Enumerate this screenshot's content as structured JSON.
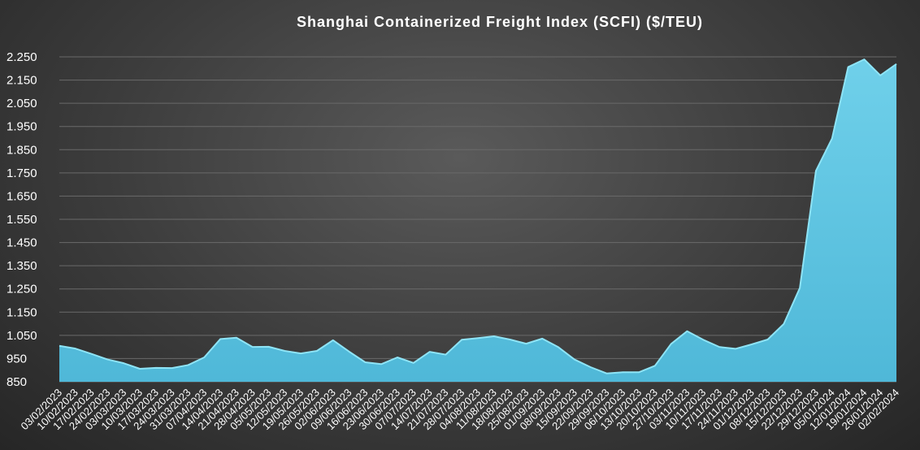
{
  "chart_data": {
    "type": "area",
    "title": "Shanghai Containerized Freight Index (SCFI) ($/TEU)",
    "xlabel": "",
    "ylabel": "",
    "ylim": [
      850,
      2250
    ],
    "y_ticks": [
      "2.250",
      "2.150",
      "2.050",
      "1.950",
      "1.850",
      "1.750",
      "1.650",
      "1.550",
      "1.450",
      "1.350",
      "1.250",
      "1.150",
      "1.050",
      "950",
      "850"
    ],
    "y_tick_values": [
      2250,
      2150,
      2050,
      1950,
      1850,
      1750,
      1650,
      1550,
      1450,
      1350,
      1250,
      1150,
      1050,
      950,
      850
    ],
    "grid": true,
    "legend": "none",
    "colors": {
      "fill": "#4fb8d8",
      "line": "#8ee4f6",
      "grid": "#6a6a6a",
      "text": "#ffffff"
    },
    "categories": [
      "03/02/2023",
      "10/02/2023",
      "17/02/2023",
      "24/02/2023",
      "03/03/2023",
      "10/03/2023",
      "17/03/2023",
      "24/03/2023",
      "31/03/2023",
      "07/04/2023",
      "14/04/2023",
      "21/04/2023",
      "28/04/2023",
      "05/05/2023",
      "12/05/2023",
      "19/05/2023",
      "26/05/2023",
      "02/06/2023",
      "09/06/2023",
      "16/06/2023",
      "23/06/2023",
      "30/06/2023",
      "07/07/2023",
      "14/07/2023",
      "21/07/2023",
      "28/07/2023",
      "04/08/2023",
      "11/08/2023",
      "18/08/2023",
      "25/08/2023",
      "01/09/2023",
      "08/09/2023",
      "15/09/2023",
      "22/09/2023",
      "29/09/2023",
      "06/10/2023",
      "13/10/2023",
      "20/10/2023",
      "27/10/2023",
      "03/11/2023",
      "10/11/2023",
      "17/11/2023",
      "24/11/2023",
      "01/12/2023",
      "08/12/2023",
      "15/12/2023",
      "22/12/2023",
      "29/12/2023",
      "05/01/2024",
      "12/01/2024",
      "19/01/2024",
      "26/01/2024",
      "02/02/2024"
    ],
    "values": [
      1005,
      993,
      970,
      946,
      930,
      906,
      910,
      909,
      922,
      955,
      1034,
      1040,
      1000,
      1001,
      983,
      972,
      983,
      1029,
      980,
      934,
      926,
      955,
      931,
      979,
      967,
      1031,
      1038,
      1046,
      1032,
      1014,
      1036,
      999,
      946,
      913,
      886,
      891,
      891,
      919,
      1013,
      1068,
      1031,
      1000,
      992,
      1011,
      1032,
      1099,
      1254,
      1759,
      1898,
      2206,
      2239,
      2170,
      2219
    ]
  }
}
